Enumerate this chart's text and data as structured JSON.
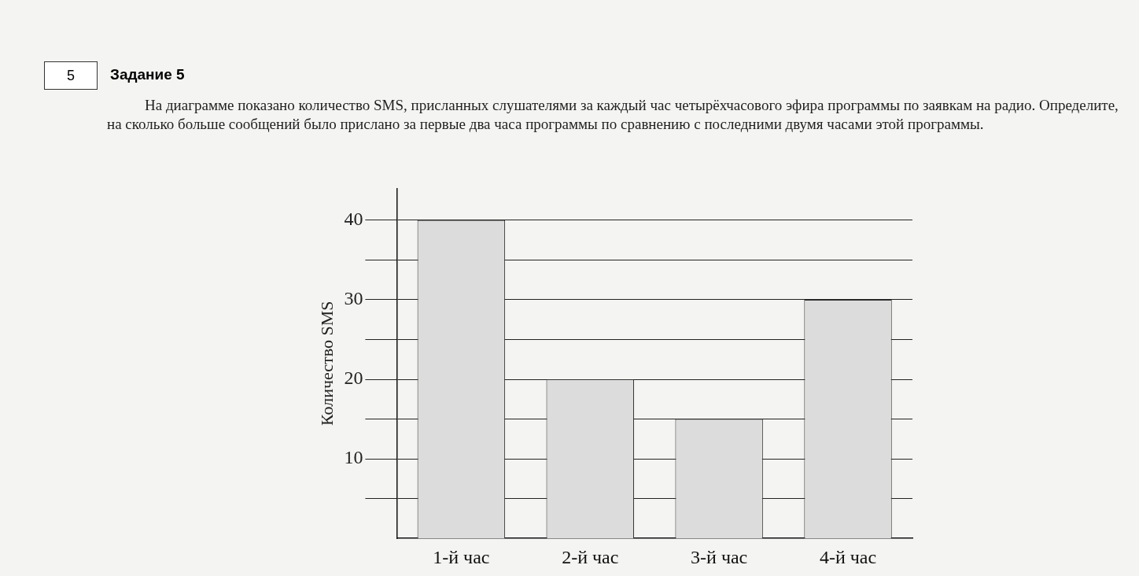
{
  "chart_data": {
    "type": "bar",
    "title": "Задание 5",
    "subtitle": "На диаграмме показано количество SMS, присланных слушателями за каждый час четырёхчасового эфира программы по заявкам на радио. Определите, на сколько больше сообщений было прислано за первые два часа программы по сравнению с последними двумя часами этой программы.",
    "annotations": [
      "5"
    ],
    "ylabel": "Количество SMS",
    "categories": [
      "1-й час",
      "2-й час",
      "3-й час",
      "4-й час"
    ],
    "values": [
      40,
      20,
      15,
      30
    ],
    "color": "#dcdcdc",
    "ylim": [
      0,
      44
    ],
    "yticks": [
      {
        "value": 5,
        "label": null
      },
      10,
      {
        "value": 15,
        "label": null
      },
      20,
      {
        "value": 25,
        "label": null
      },
      30,
      {
        "value": 35,
        "label": null
      },
      40
    ],
    "grid": "y",
    "legend": false
  }
}
